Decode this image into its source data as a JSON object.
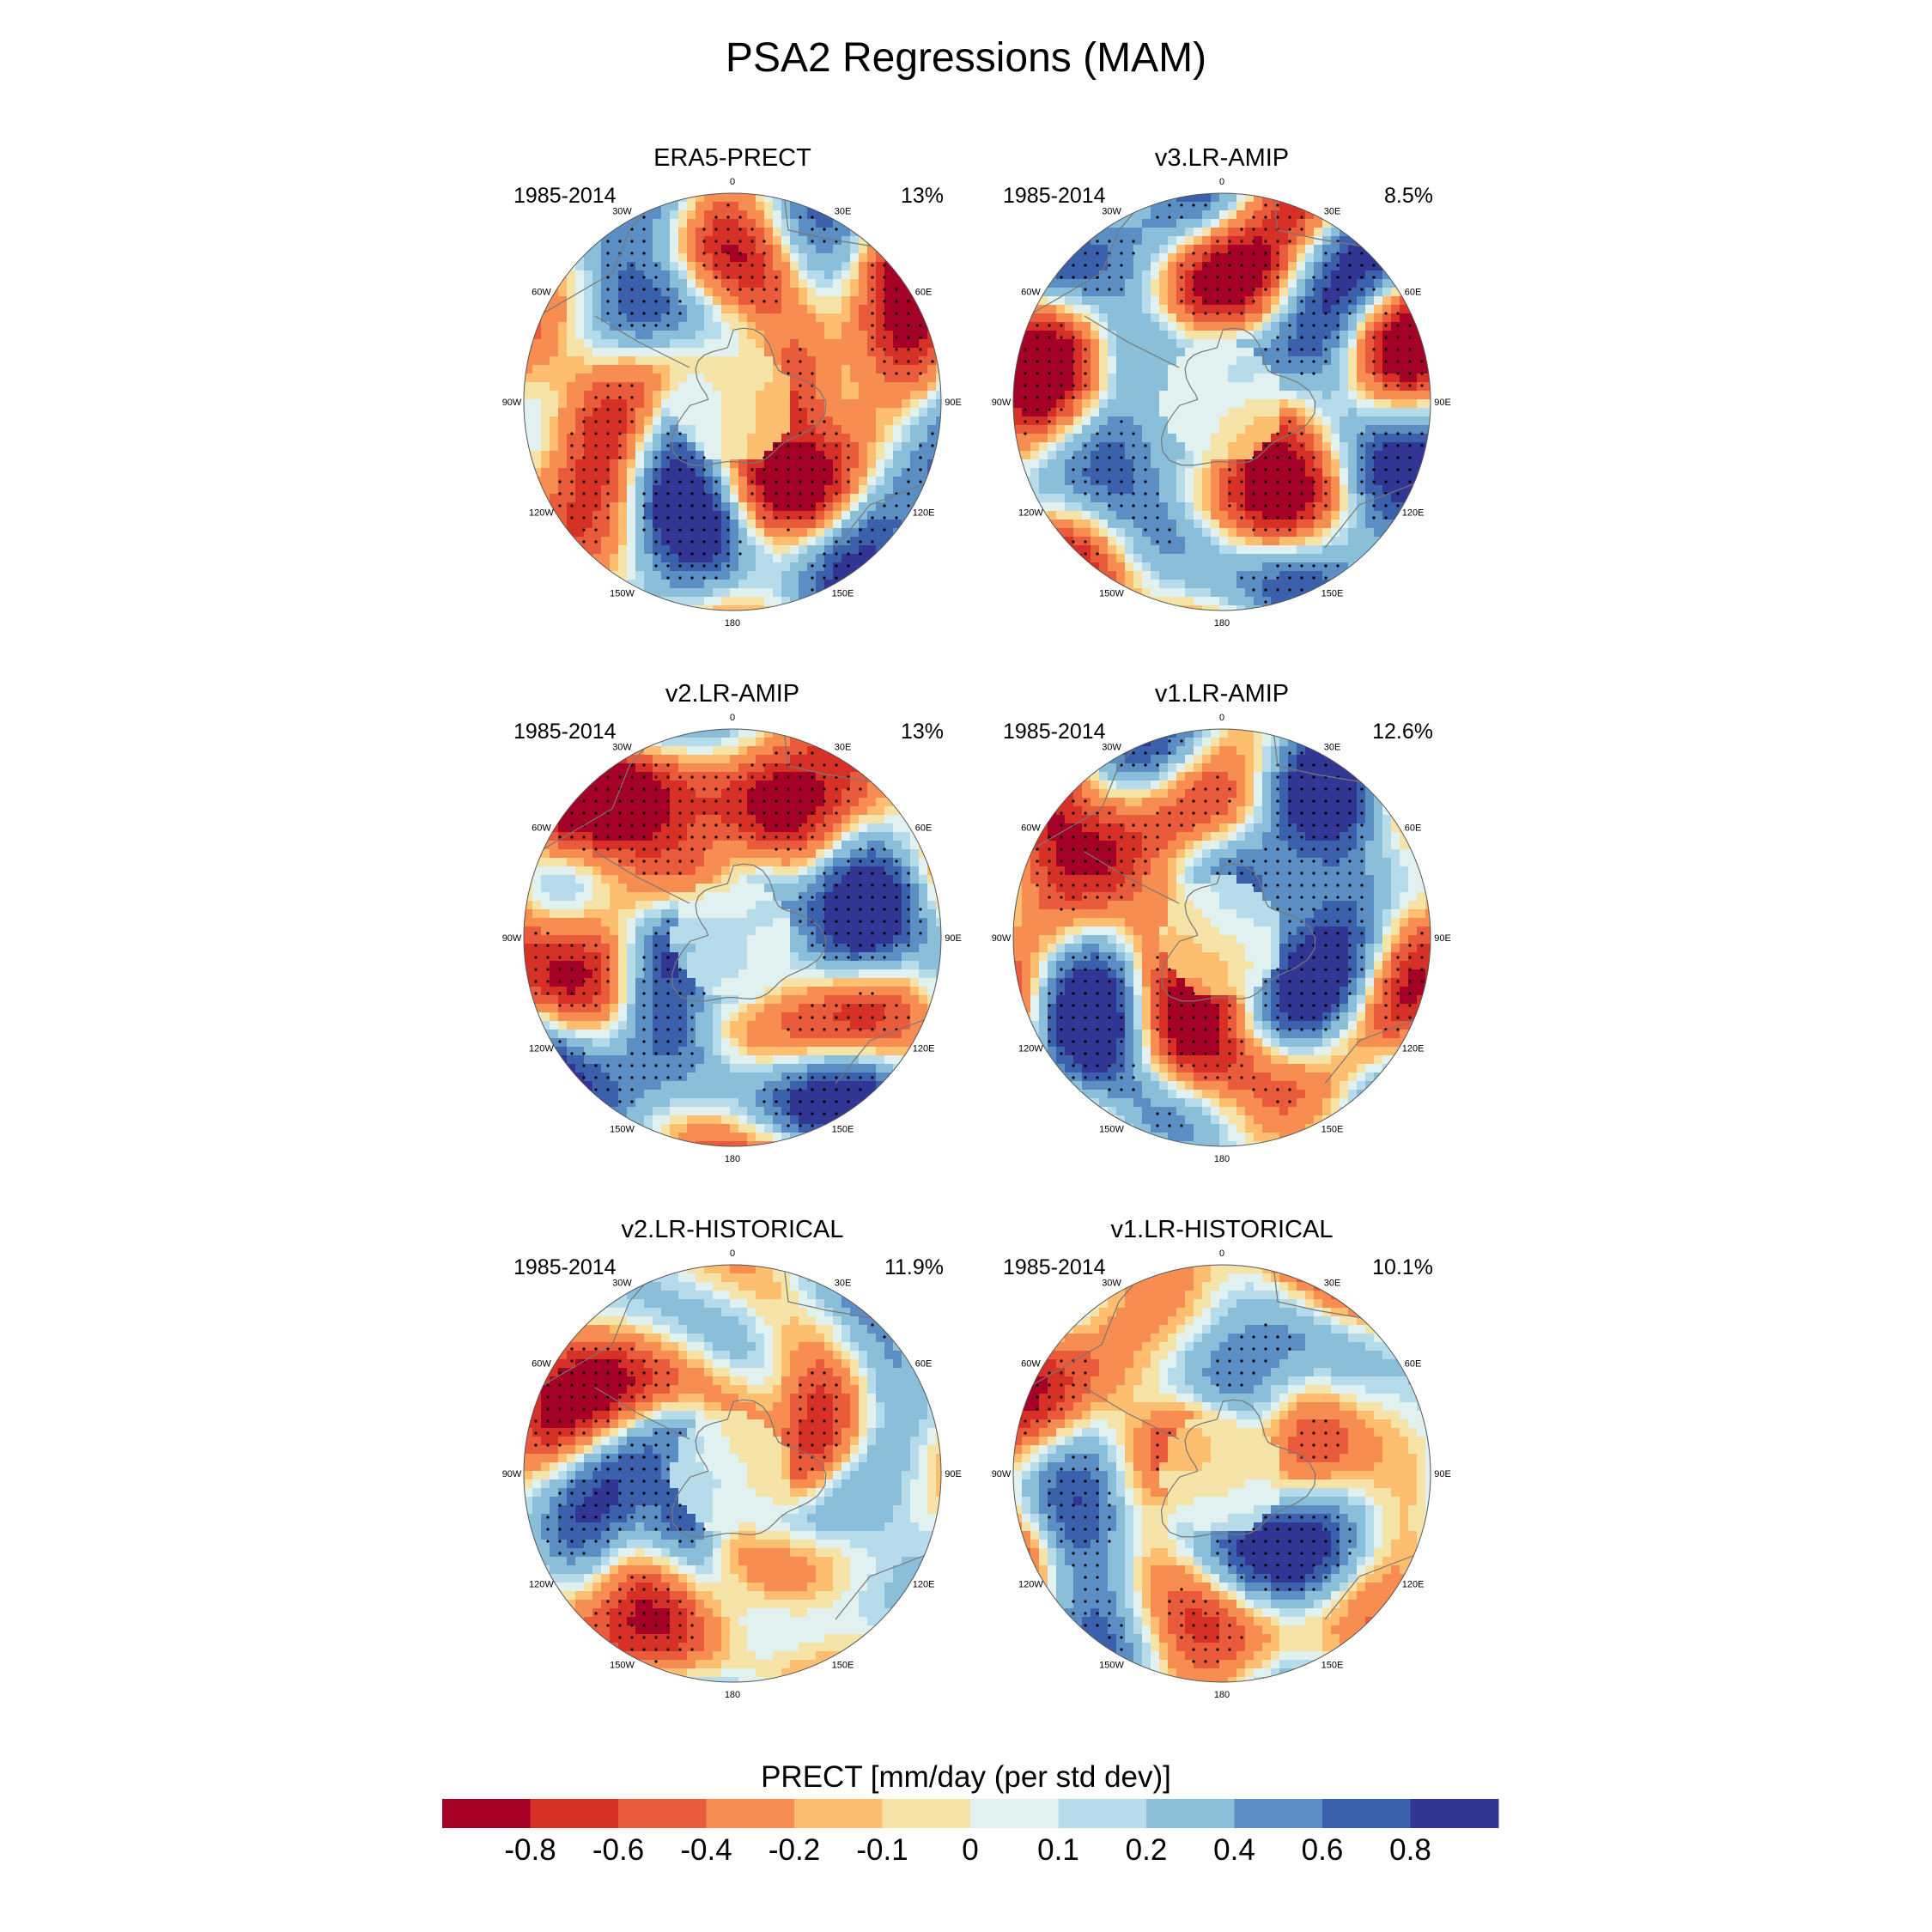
{
  "title": "PSA2 Regressions (MAM)",
  "panels": [
    {
      "id": "era5",
      "title": "ERA5-PRECT",
      "years": "1985-2014",
      "percent": "13%",
      "seed": 11
    },
    {
      "id": "v3amip",
      "title": "v3.LR-AMIP",
      "years": "1985-2014",
      "percent": "8.5%",
      "seed": 23
    },
    {
      "id": "v2amip",
      "title": "v2.LR-AMIP",
      "years": "1985-2014",
      "percent": "13%",
      "seed": 37
    },
    {
      "id": "v1amip",
      "title": "v1.LR-AMIP",
      "years": "1985-2014",
      "percent": "12.6%",
      "seed": 41
    },
    {
      "id": "v2hist",
      "title": "v2.LR-HISTORICAL",
      "years": "1985-2014",
      "percent": "11.9%",
      "seed": 53
    },
    {
      "id": "v1hist",
      "title": "v1.LR-HISTORICAL",
      "years": "1985-2014",
      "percent": "10.1%",
      "seed": 67
    }
  ],
  "longitude_labels": [
    "0",
    "30E",
    "60E",
    "90E",
    "120E",
    "150E",
    "180",
    "150W",
    "120W",
    "90W",
    "60W",
    "30W"
  ],
  "colorbar": {
    "title": "PRECT [mm/day (per std dev)]",
    "tick_labels": [
      "-0.8",
      "-0.6",
      "-0.4",
      "-0.2",
      "-0.1",
      "0",
      "0.1",
      "0.2",
      "0.4",
      "0.6",
      "0.8"
    ],
    "colors": [
      "#a50026",
      "#d73027",
      "#ea5b3c",
      "#f88d52",
      "#fdbf6f",
      "#f5e3a7",
      "#e0f1f0",
      "#b6dbeb",
      "#8bbed9",
      "#5b8fc4",
      "#3b60ac",
      "#313695"
    ]
  }
}
